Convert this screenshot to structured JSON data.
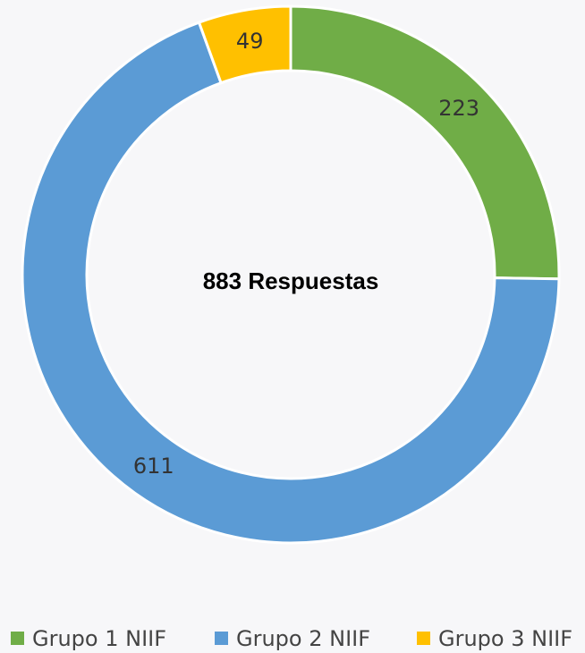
{
  "chart_data": {
    "type": "donut",
    "center_label": "883 Respuestas",
    "categories": [
      "Grupo 1 NIIF",
      "Grupo 2 NIIF",
      "Grupo 3 NIIF"
    ],
    "values": [
      223,
      611,
      49
    ],
    "colors": [
      "#70ad47",
      "#5b9bd5",
      "#ffc000"
    ],
    "legend": "bottom"
  }
}
